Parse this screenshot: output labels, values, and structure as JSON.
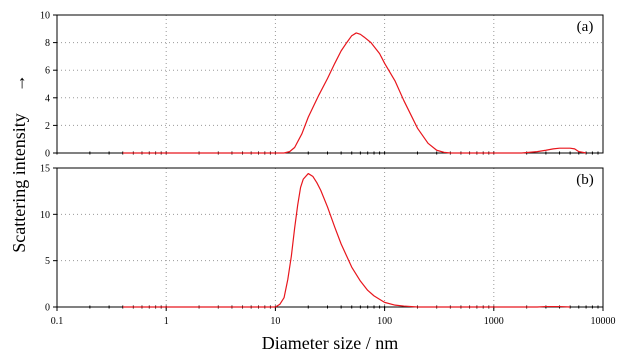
{
  "colors": {
    "series": "#e8161d",
    "axis": "#000000",
    "grid": "#9a9a9a",
    "background": "#ffffff"
  },
  "chart_data": {
    "type": "line",
    "xlabel": "Diameter size / nm",
    "ylabel": "Scattering  intensity",
    "ylabel_arrow": "→",
    "x_scale": "log",
    "xlim": [
      0.1,
      10000
    ],
    "x_tick_labels": [
      "0.1",
      "1",
      "10",
      "100",
      "1000",
      "10000"
    ],
    "grid": true,
    "legend": "none",
    "panels": [
      {
        "label": "(a)",
        "ylim": [
          0,
          10
        ],
        "y_tick_labels": [
          "0",
          "2",
          "4",
          "6",
          "8",
          "10"
        ],
        "y_ticks": [
          0,
          2,
          4,
          6,
          8,
          10
        ],
        "series": [
          {
            "x": [
              0.4,
              1,
              5,
              10,
              12,
              13.5,
              15,
              17.5,
              20,
              25,
              30,
              35,
              40,
              45,
              50,
              55,
              60,
              65,
              75,
              90,
              100,
              125,
              150,
              200,
              250,
              300,
              350,
              400,
              600,
              1000,
              1800,
              2500,
              3000,
              3500,
              4000,
              5000,
              5500,
              6000,
              7000
            ],
            "y": [
              0,
              0,
              0,
              0,
              0,
              0.1,
              0.4,
              1.4,
              2.6,
              4.2,
              5.4,
              6.5,
              7.4,
              8.0,
              8.5,
              8.7,
              8.6,
              8.4,
              8.0,
              7.2,
              6.5,
              5.2,
              3.8,
              1.8,
              0.7,
              0.2,
              0.05,
              0,
              0,
              0,
              0,
              0.1,
              0.2,
              0.3,
              0.35,
              0.35,
              0.3,
              0.1,
              0
            ]
          }
        ]
      },
      {
        "label": "(b)",
        "ylim": [
          0,
          15
        ],
        "y_tick_labels": [
          "0",
          "5",
          "10",
          "15"
        ],
        "y_ticks": [
          0,
          5,
          10,
          15
        ],
        "series": [
          {
            "x": [
              0.4,
              1,
              5,
              10,
              11,
              12,
              13,
              14,
              15,
              16,
              17,
              18,
              20,
              22,
              24,
              26,
              30,
              35,
              40,
              50,
              60,
              70,
              80,
              100,
              125,
              150,
              200,
              250,
              300,
              500,
              1000,
              2500,
              3000,
              3500,
              4000,
              5000
            ],
            "y": [
              0,
              0,
              0,
              0,
              0.3,
              1.0,
              3.0,
              5.5,
              8.5,
              11.0,
              12.9,
              13.8,
              14.4,
              14.1,
              13.4,
              12.6,
              10.8,
              8.6,
              6.8,
              4.3,
              2.8,
              1.8,
              1.2,
              0.5,
              0.2,
              0.1,
              0,
              0,
              0,
              0,
              0,
              0,
              0.05,
              0.05,
              0.05,
              0
            ]
          }
        ]
      }
    ]
  }
}
